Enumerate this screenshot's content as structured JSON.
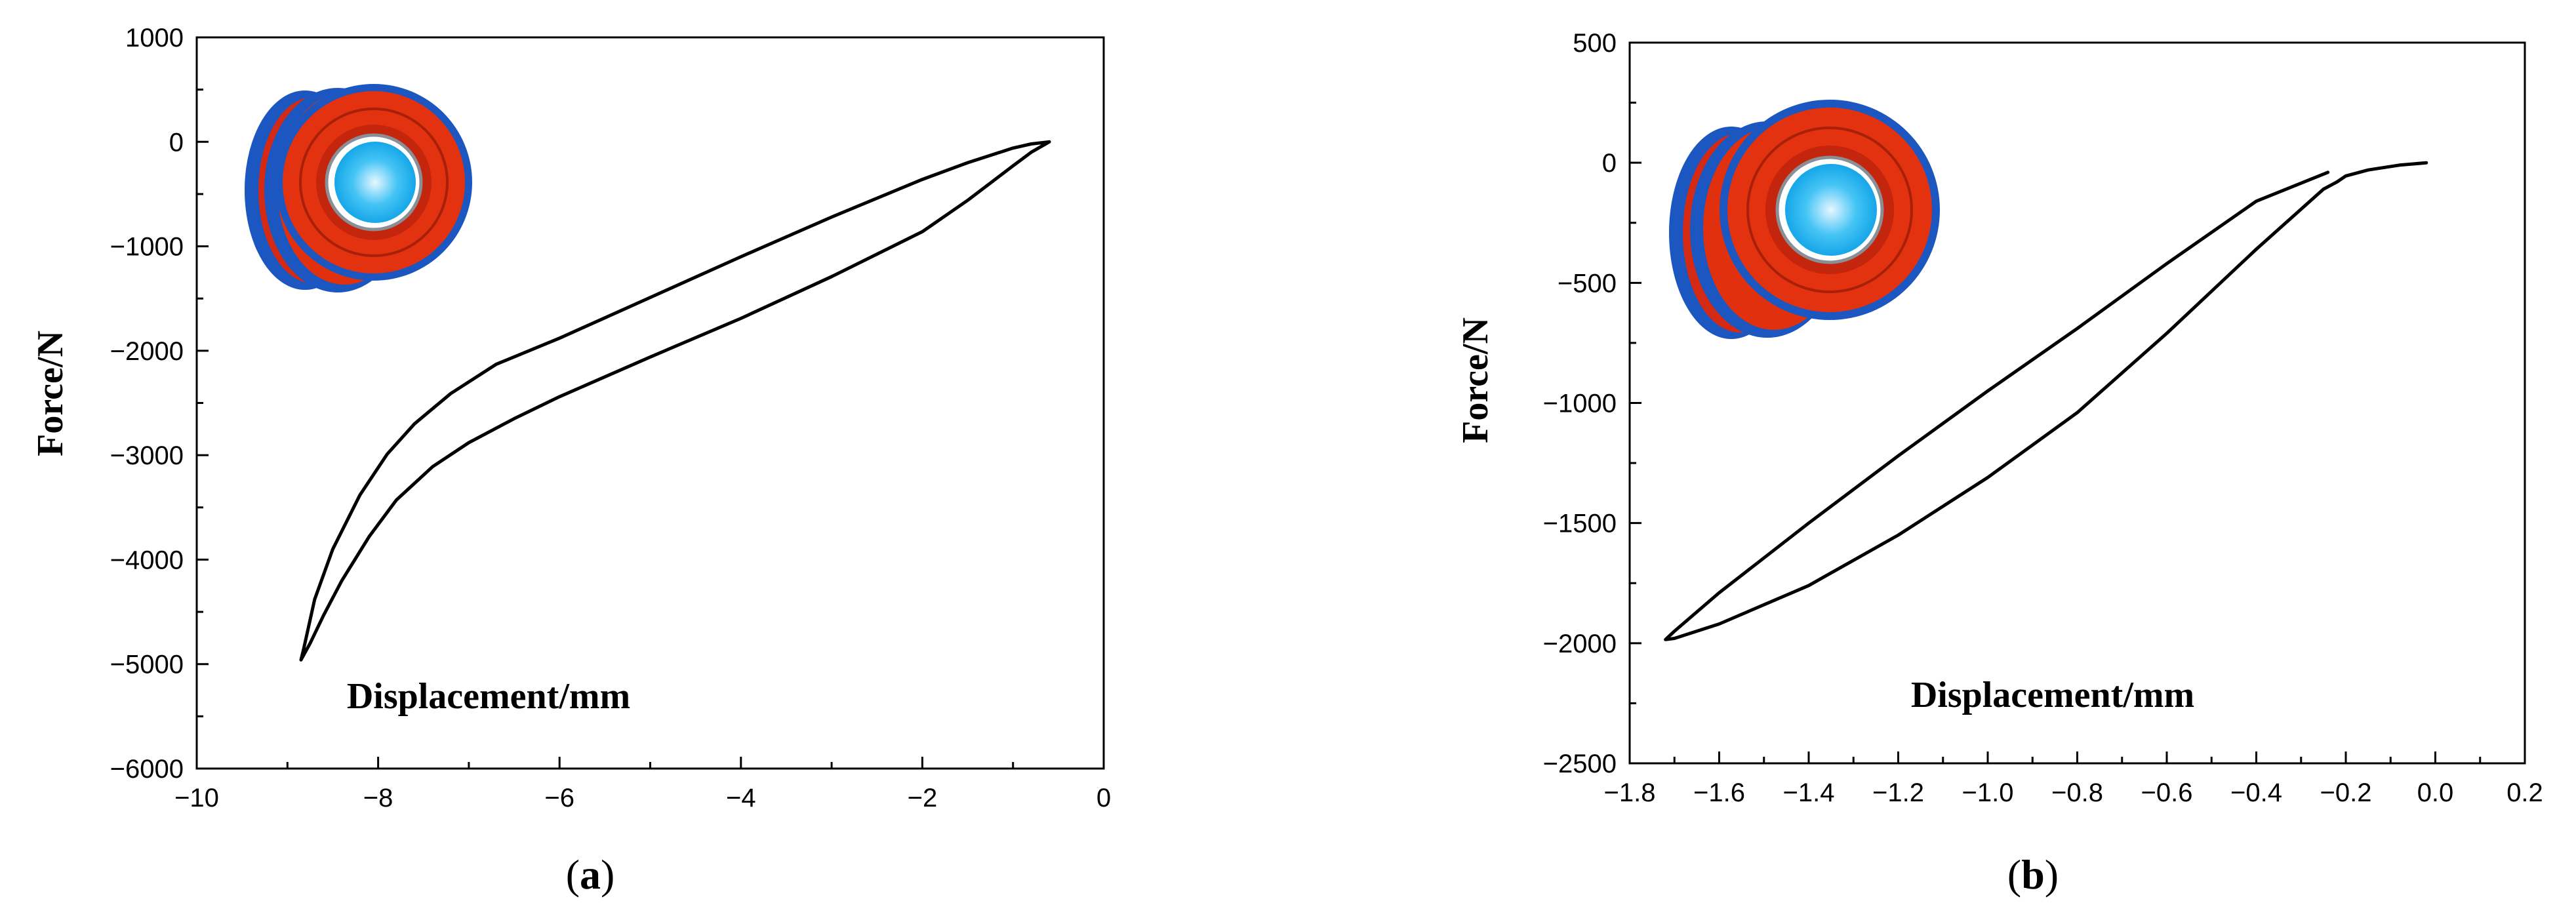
{
  "chart_data": [
    {
      "type": "line",
      "panel_label": "a",
      "xlabel": "Displacement/mm",
      "ylabel": "Force/N",
      "xlim": [
        -10,
        0
      ],
      "ylim": [
        -6000,
        1000
      ],
      "xticks": [
        -10,
        -8,
        -6,
        -4,
        -2,
        0
      ],
      "xtick_labels": [
        "−10",
        "−8",
        "−6",
        "−4",
        "−2",
        "0"
      ],
      "yticks": [
        1000,
        0,
        -1000,
        -2000,
        -3000,
        -4000,
        -5000,
        -6000
      ],
      "ytick_labels": [
        "1000",
        "0",
        "−1000",
        "−2000",
        "−3000",
        "−4000",
        "−5000",
        "−6000"
      ],
      "grid": false,
      "line_color": "#000000",
      "inset_icon": "red-tire-wheel-icon",
      "series": [
        {
          "x": [
            -0.6,
            -0.8,
            -1.0,
            -1.5,
            -2.0,
            -3.0,
            -4.0,
            -5.0,
            -6.0,
            -6.5,
            -7.0,
            -7.4,
            -7.8,
            -8.1,
            -8.4,
            -8.6,
            -8.75,
            -8.85,
            -8.82,
            -8.7,
            -8.5,
            -8.2,
            -7.9,
            -7.6,
            -7.2,
            -6.7,
            -6.0,
            -5.0,
            -4.0,
            -3.0,
            -2.0,
            -1.5,
            -1.0,
            -0.8,
            -0.6
          ],
          "y": [
            0,
            -100,
            -230,
            -560,
            -860,
            -1290,
            -1690,
            -2060,
            -2440,
            -2650,
            -2880,
            -3110,
            -3430,
            -3780,
            -4200,
            -4530,
            -4800,
            -4960,
            -4850,
            -4380,
            -3900,
            -3380,
            -2990,
            -2700,
            -2410,
            -2130,
            -1880,
            -1490,
            -1100,
            -720,
            -360,
            -200,
            -60,
            -20,
            0
          ]
        }
      ]
    },
    {
      "type": "line",
      "panel_label": "b",
      "xlabel": "Displacement/mm",
      "ylabel": "Force/N",
      "xlim": [
        -1.8,
        0.2
      ],
      "ylim": [
        -2500,
        500
      ],
      "xticks": [
        -1.8,
        -1.6,
        -1.4,
        -1.2,
        -1.0,
        -0.8,
        -0.6,
        -0.4,
        -0.2,
        0.0,
        0.2
      ],
      "xtick_labels": [
        "−1.8",
        "−1.6",
        "−1.4",
        "−1.2",
        "−1.0",
        "−0.8",
        "−0.6",
        "−0.4",
        "−0.2",
        "0.0",
        "0.2"
      ],
      "yticks": [
        500,
        0,
        -500,
        -1000,
        -1500,
        -2000,
        -2500
      ],
      "ytick_labels": [
        "500",
        "0",
        "−500",
        "−1000",
        "−1500",
        "−2000",
        "−2500"
      ],
      "grid": false,
      "line_color": "#000000",
      "inset_icon": "red-tire-wheel-icon",
      "series": [
        {
          "x": [
            -0.02,
            -0.08,
            -0.15,
            -0.2,
            -0.22,
            -0.25,
            -0.4,
            -0.6,
            -0.8,
            -1.0,
            -1.2,
            -1.4,
            -1.6,
            -1.7,
            -1.72,
            -1.7,
            -1.6,
            -1.4,
            -1.2,
            -1.0,
            -0.8,
            -0.6,
            -0.4,
            -0.24
          ],
          "y": [
            0,
            -10,
            -30,
            -55,
            -80,
            -110,
            -360,
            -710,
            -1040,
            -1310,
            -1550,
            -1760,
            -1920,
            -1980,
            -1985,
            -1950,
            -1790,
            -1500,
            -1220,
            -950,
            -690,
            -420,
            -160,
            -40
          ]
        }
      ]
    }
  ]
}
